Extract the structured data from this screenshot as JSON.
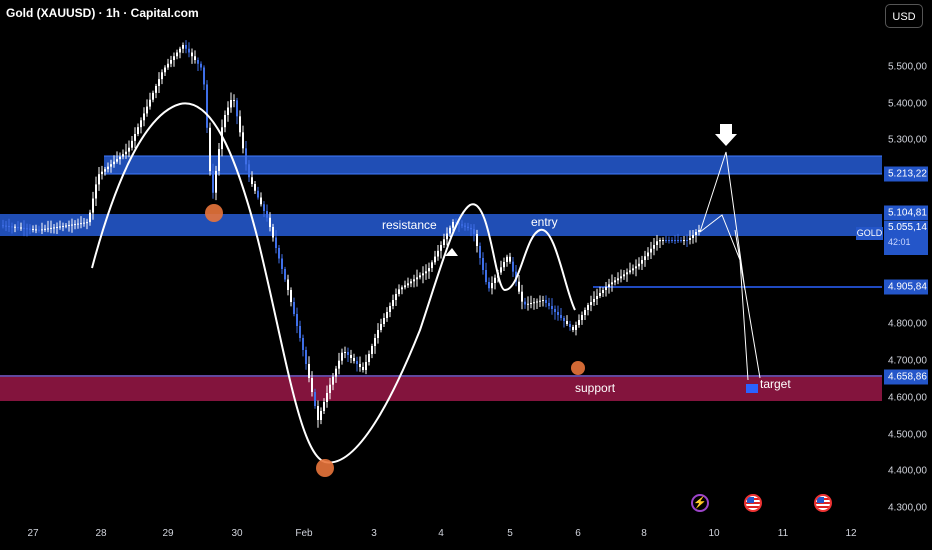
{
  "header": {
    "title": "Gold (XAUUSD) · 1h · Capital.com",
    "currency_button": "USD"
  },
  "colors": {
    "background": "#000000",
    "zone_blue": "#2456c9",
    "zone_support": "#8a1540",
    "line_blue": "#2a62ff",
    "marker": "#e8743b",
    "annotation": "#ffffff"
  },
  "price_axis": {
    "ticks": [
      "5.500,00",
      "5.400,00",
      "5.300,00",
      "4.800,00",
      "4.700,00",
      "4.600,00",
      "4.500,00",
      "4.400,00",
      "4.300,00"
    ],
    "badges": [
      "5.213,22",
      "5.104,81",
      "4.905,84",
      "4.658,86"
    ],
    "gold_tag": "GOLD",
    "gold_price": "5.055,14",
    "countdown": "42:01"
  },
  "time_axis": {
    "labels": [
      "27",
      "28",
      "29",
      "30",
      "Feb",
      "3",
      "4",
      "5",
      "6",
      "8",
      "10",
      "11",
      "12"
    ]
  },
  "annotations": {
    "resistance": "resistance",
    "entry": "entry",
    "support": "support",
    "target": "target"
  },
  "events": [
    {
      "icon": "lightning-icon"
    },
    {
      "icon": "us-flag-icon"
    },
    {
      "icon": "us-flag-icon"
    }
  ]
}
